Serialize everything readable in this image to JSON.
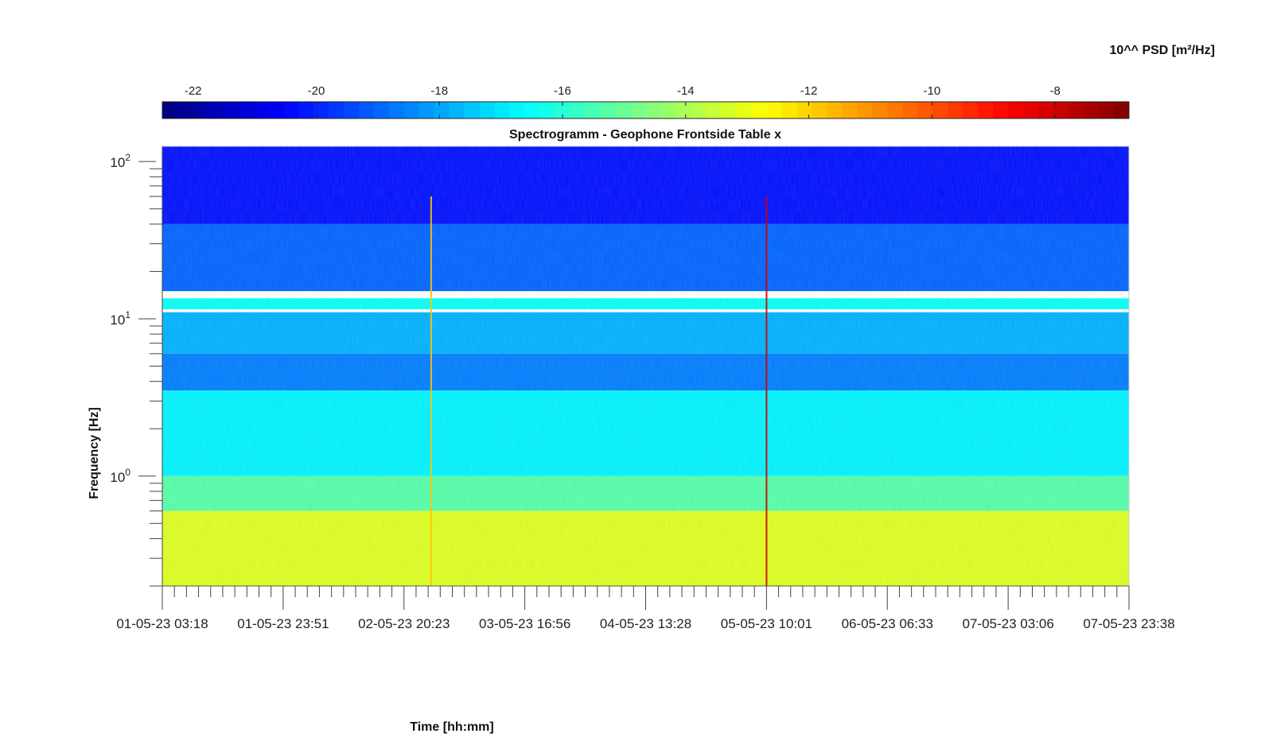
{
  "chart_data": {
    "type": "heatmap",
    "title": "Spectrogramm - Geophone Frontside Table x",
    "xlabel": "Time [hh:mm]",
    "ylabel": "Frequency [Hz]",
    "yscale": "log",
    "ylim": [
      0.2,
      125
    ],
    "y_tick_labels": [
      "10^2",
      "10^1",
      "10^0"
    ],
    "y_tick_values": [
      100,
      10,
      1
    ],
    "x_tick_labels": [
      "01-05-23 03:18",
      "01-05-23 23:51",
      "02-05-23 20:23",
      "03-05-23 16:56",
      "04-05-23 13:28",
      "05-05-23 10:01",
      "06-05-23 06:33",
      "07-05-23 03:06",
      "07-05-23 23:38"
    ],
    "colorbar": {
      "label": "10^^ PSD [m²/Hz]",
      "range": [
        -22.5,
        -6.8
      ],
      "tick_labels": [
        "-22",
        "-20",
        "-18",
        "-16",
        "-14",
        "-12",
        "-10",
        "-8"
      ],
      "tick_values": [
        -22,
        -20,
        -18,
        -16,
        -14,
        -12,
        -10,
        -8
      ],
      "colormap": "jet"
    },
    "frequency_bands": [
      {
        "f_low": 40,
        "f_high": 125,
        "log10_psd": -20.3
      },
      {
        "f_low": 15,
        "f_high": 40,
        "log10_psd": -19.0
      },
      {
        "f_low": 11.5,
        "f_high": 13.5,
        "log10_psd": -16.5
      },
      {
        "f_low": 6,
        "f_high": 11,
        "log10_psd": -17.8
      },
      {
        "f_low": 3.5,
        "f_high": 6,
        "log10_psd": -18.6
      },
      {
        "f_low": 1.0,
        "f_high": 3.5,
        "log10_psd": -16.8
      },
      {
        "f_low": 0.6,
        "f_high": 1.0,
        "log10_psd": -15.3
      },
      {
        "f_low": 0.2,
        "f_high": 0.6,
        "log10_psd": -13.2
      }
    ],
    "events": [
      {
        "time": "03-05-23 01:00",
        "log10_psd": -11.8
      },
      {
        "time": "05-05-23 10:01",
        "log10_psd": -8.0
      }
    ]
  }
}
